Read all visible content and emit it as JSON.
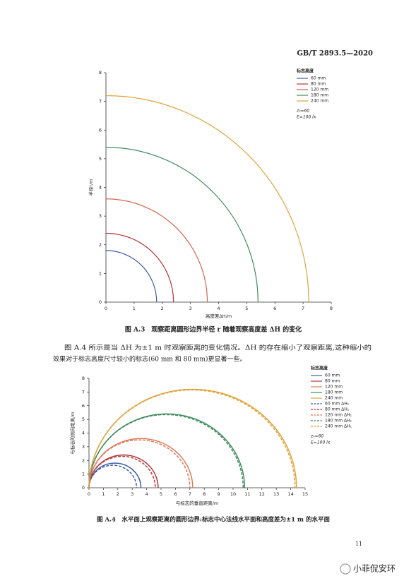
{
  "header": {
    "code": "GB/T 2893.5—2020"
  },
  "chart_data": [
    {
      "type": "arc",
      "xlabel": "高度差ΔH/m",
      "ylabel": "半径r/m",
      "xlim": [
        0,
        8
      ],
      "ylim": [
        0,
        8
      ],
      "xticks": [
        0,
        1,
        2,
        3,
        4,
        5,
        6,
        7,
        8
      ],
      "yticks": [
        0,
        1,
        2,
        3,
        4,
        5,
        6,
        7,
        8
      ],
      "legend_title": "标志高度",
      "series": [
        {
          "name": "60 mm",
          "color": "#3b5ca6",
          "values": [
            1.8
          ]
        },
        {
          "name": "80 mm",
          "color": "#b8343a",
          "values": [
            2.4
          ]
        },
        {
          "name": "120 mm",
          "color": "#d9634c",
          "values": [
            3.6
          ]
        },
        {
          "name": "180 mm",
          "color": "#3f8c5c",
          "values": [
            5.4
          ]
        },
        {
          "name": "240 mm",
          "color": "#e2a23a",
          "values": [
            7.2
          ]
        }
      ],
      "annotations": [
        "z₀=60",
        "E=100 lx"
      ],
      "caption": "图 A.3　观察距离圆形边界半径 r 随着观察高度差 ΔH 的变化"
    },
    {
      "type": "semicircle",
      "xlabel": "与标志的垂直距离/m",
      "ylabel": "与标志的侧向距离/m",
      "xlim": [
        0,
        15
      ],
      "ylim": [
        0,
        8
      ],
      "xticks": [
        0,
        1,
        2,
        3,
        4,
        5,
        6,
        7,
        8,
        9,
        10,
        11,
        12,
        13,
        14,
        15
      ],
      "yticks": [
        0,
        1,
        2,
        3,
        4,
        5,
        6,
        7,
        8
      ],
      "legend_title": "标志高度",
      "series": [
        {
          "name": "60 mm",
          "color": "#3b5ca6",
          "dash": false,
          "values": [
            1.8
          ]
        },
        {
          "name": "80 mm",
          "color": "#b8343a",
          "dash": false,
          "values": [
            2.4
          ]
        },
        {
          "name": "120 mm",
          "color": "#e07a5a",
          "dash": false,
          "values": [
            3.6
          ]
        },
        {
          "name": "180 mm",
          "color": "#3f8c5c",
          "dash": false,
          "values": [
            5.4
          ]
        },
        {
          "name": "240 mm",
          "color": "#e2a23a",
          "dash": false,
          "values": [
            7.2
          ]
        },
        {
          "name": "60 mm ΔH₁",
          "color": "#3b5ca6",
          "dash": true,
          "values": [
            1.65
          ]
        },
        {
          "name": "80 mm ΔH₁",
          "color": "#b8343a",
          "dash": true,
          "values": [
            2.3
          ]
        },
        {
          "name": "120 mm ΔH₁",
          "color": "#e07a5a",
          "dash": true,
          "values": [
            3.5
          ]
        },
        {
          "name": "180 mm ΔH₁",
          "color": "#3f8c5c",
          "dash": true,
          "values": [
            5.35
          ]
        },
        {
          "name": "240 mm ΔH₁",
          "color": "#e2a23a",
          "dash": true,
          "values": [
            7.15
          ]
        }
      ],
      "annotations": [
        "z₀=60",
        "E=100 lx"
      ],
      "caption": "图 A.4　水平面上观察距离的圆形边界:标志中心法线水平面和高度差为±1 m 的水平面"
    }
  ],
  "paragraph": {
    "lines": [
      "图 A.4 所示是当 ΔH 为±1 m 时观察距离的变化情况。ΔH 的存在缩小了观察距离,这种缩小的",
      "效果对于标志高度尺寸较小的标志(60 mm 和 80 mm)更显著一些。"
    ]
  },
  "page_number": "11",
  "watermark": "小菲侃安环"
}
